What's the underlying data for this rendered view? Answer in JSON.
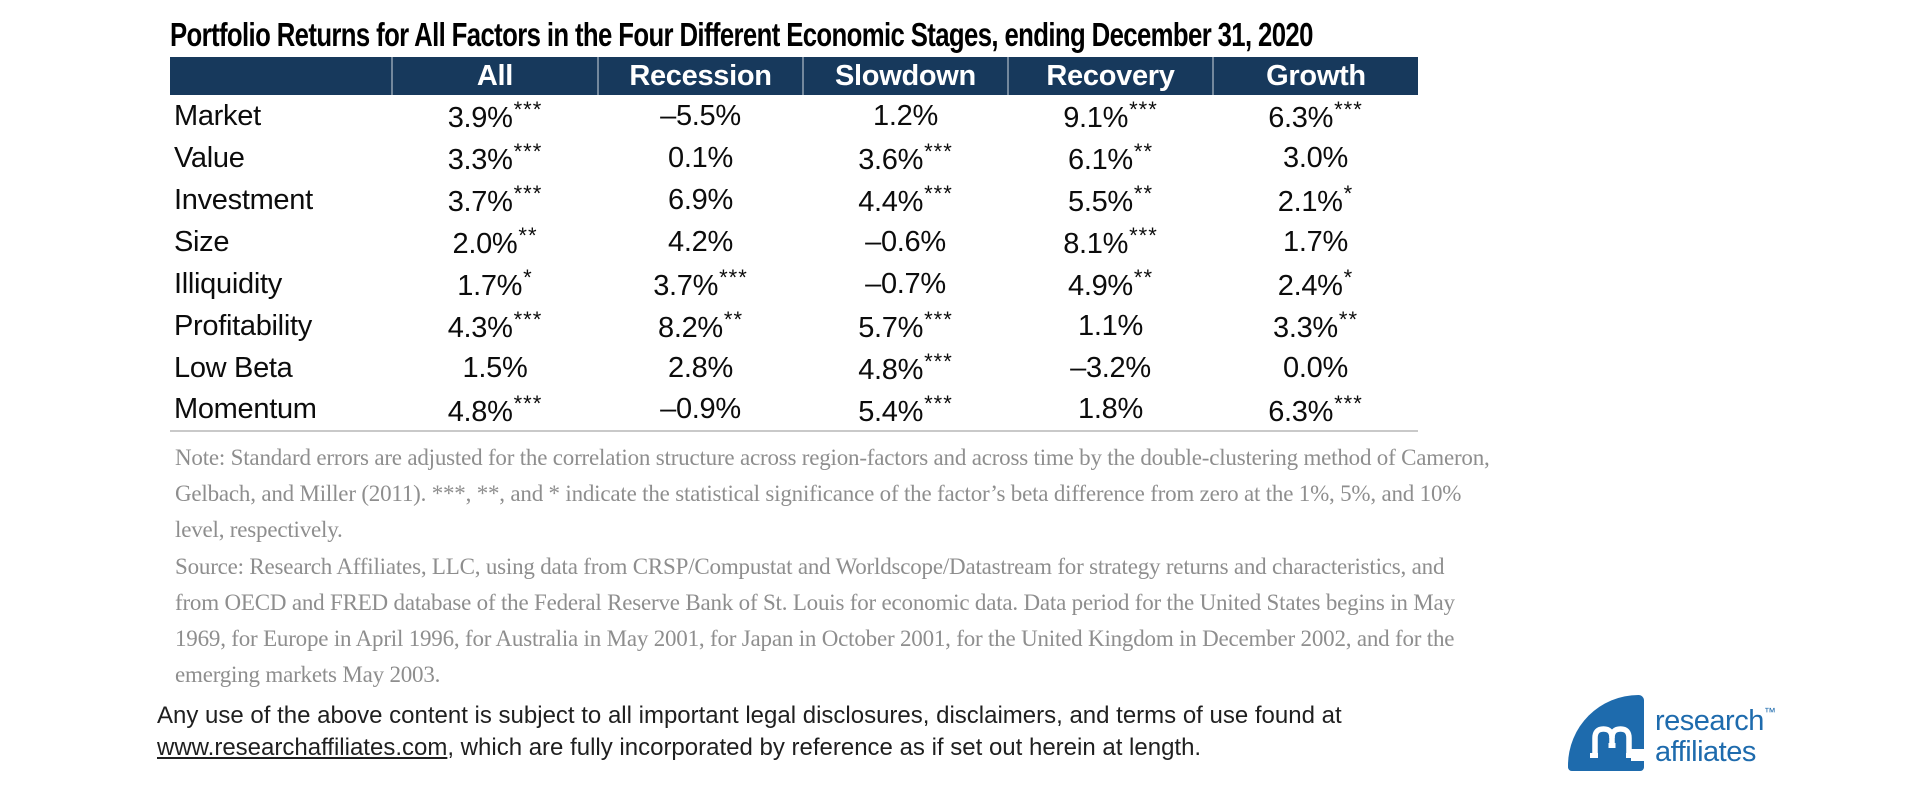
{
  "title": "Portfolio Returns for All Factors in the Four Different Economic Stages, ending December 31, 2020",
  "table": {
    "columns": [
      "",
      "All",
      "Recession",
      "Slowdown",
      "Recovery",
      "Growth"
    ],
    "rows": [
      {
        "label": "Market",
        "cells": [
          {
            "value": "3.9%",
            "sig": "***"
          },
          {
            "value": "–5.5%",
            "sig": ""
          },
          {
            "value": "1.2%",
            "sig": ""
          },
          {
            "value": "9.1%",
            "sig": "***"
          },
          {
            "value": "6.3%",
            "sig": "***"
          }
        ]
      },
      {
        "label": "Value",
        "cells": [
          {
            "value": "3.3%",
            "sig": "***"
          },
          {
            "value": "0.1%",
            "sig": ""
          },
          {
            "value": "3.6%",
            "sig": "***"
          },
          {
            "value": "6.1%",
            "sig": "**"
          },
          {
            "value": "3.0%",
            "sig": ""
          }
        ]
      },
      {
        "label": "Investment",
        "cells": [
          {
            "value": "3.7%",
            "sig": "***"
          },
          {
            "value": "6.9%",
            "sig": ""
          },
          {
            "value": "4.4%",
            "sig": "***"
          },
          {
            "value": "5.5%",
            "sig": "**"
          },
          {
            "value": "2.1%",
            "sig": "*"
          }
        ]
      },
      {
        "label": "Size",
        "cells": [
          {
            "value": "2.0%",
            "sig": "**"
          },
          {
            "value": "4.2%",
            "sig": ""
          },
          {
            "value": "–0.6%",
            "sig": ""
          },
          {
            "value": "8.1%",
            "sig": "***"
          },
          {
            "value": "1.7%",
            "sig": ""
          }
        ]
      },
      {
        "label": "Illiquidity",
        "cells": [
          {
            "value": "1.7%",
            "sig": "*"
          },
          {
            "value": "3.7%",
            "sig": "***"
          },
          {
            "value": "–0.7%",
            "sig": ""
          },
          {
            "value": "4.9%",
            "sig": "**"
          },
          {
            "value": "2.4%",
            "sig": "*"
          }
        ]
      },
      {
        "label": "Profitability",
        "cells": [
          {
            "value": "4.3%",
            "sig": "***"
          },
          {
            "value": "8.2%",
            "sig": "**"
          },
          {
            "value": "5.7%",
            "sig": "***"
          },
          {
            "value": "1.1%",
            "sig": ""
          },
          {
            "value": "3.3%",
            "sig": "**"
          }
        ]
      },
      {
        "label": "Low Beta",
        "cells": [
          {
            "value": "1.5%",
            "sig": ""
          },
          {
            "value": "2.8%",
            "sig": ""
          },
          {
            "value": "4.8%",
            "sig": "***"
          },
          {
            "value": "–3.2%",
            "sig": ""
          },
          {
            "value": "0.0%",
            "sig": ""
          }
        ]
      },
      {
        "label": "Momentum",
        "cells": [
          {
            "value": "4.8%",
            "sig": "***"
          },
          {
            "value": "–0.9%",
            "sig": ""
          },
          {
            "value": "5.4%",
            "sig": "***"
          },
          {
            "value": "1.8%",
            "sig": ""
          },
          {
            "value": "6.3%",
            "sig": "***"
          }
        ]
      }
    ]
  },
  "footnotes": {
    "note": "Note: Standard errors are adjusted for the correlation structure across region-factors and across time by the double-clustering method of Cameron, Gelbach, and Miller (2011). ***, **, and * indicate the statistical significance of the factor’s beta difference from zero at the 1%, 5%, and 10% level, respectively.",
    "source": "Source: Research Affiliates, LLC, using data from CRSP/Compustat and Worldscope/Datastream for strategy returns and characteristics, and from OECD and FRED database of the Federal Reserve Bank of St. Louis for economic data. Data period for the United States begins in May 1969, for Europe in April 1996, for Australia in May 2001, for Japan in October 2001, for the United Kingdom in December 2002, and for the emerging markets May 2003."
  },
  "legal": {
    "line1": "Any use of the above content is subject to all important legal disclosures, disclaimers, and terms of use found at",
    "link_text": "www.researchaffiliates.com",
    "line2_rest": ", which are fully incorporated by reference as if set out herein at length."
  },
  "logo": {
    "word1": "research",
    "word2": "affiliates",
    "trademark": "™"
  },
  "colors": {
    "header_bg": "#17395c",
    "logo_blue": "#1e6bad",
    "note_gray": "#8e8e8e",
    "rule_gray": "#c9c9c9",
    "text_black": "#111111"
  }
}
